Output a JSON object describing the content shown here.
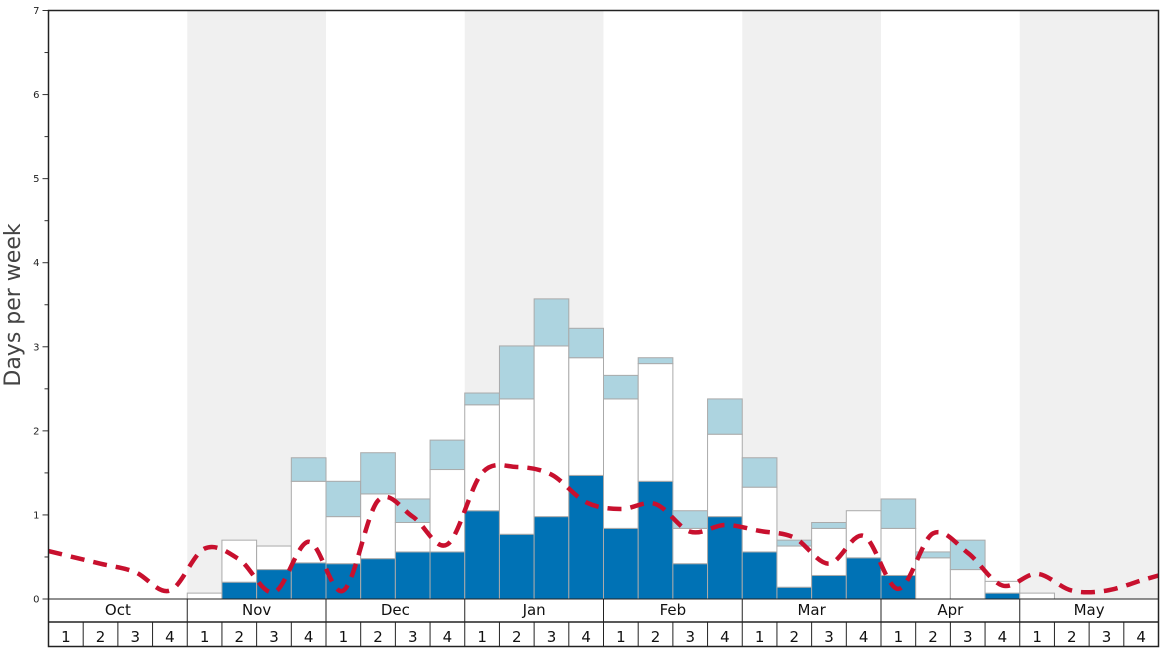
{
  "chart_data": {
    "type": "bar",
    "title": "",
    "xlabel": "",
    "ylabel": "Days per week",
    "ylim": [
      0,
      7
    ],
    "yticks": [
      0,
      1,
      2,
      3,
      4,
      5,
      6,
      7
    ],
    "months": [
      "Oct",
      "Nov",
      "Dec",
      "Jan",
      "Feb",
      "Mar",
      "Apr",
      "May"
    ],
    "weeks_per_month": [
      "1",
      "2",
      "3",
      "4"
    ],
    "colors": {
      "dark_segment": "#0072b5",
      "white_segment": "#ffffff",
      "light_segment": "#add4e0",
      "average_line": "#c8102e",
      "band_shade": "#f0f0f0",
      "bar_stroke": "#aaaaaa"
    },
    "series": [
      {
        "values": [
          0,
          0,
          0,
          0,
          0,
          0.2,
          0.35,
          0.43,
          0.42,
          0.48,
          0.56,
          0.56,
          1.05,
          0.77,
          0.98,
          1.47,
          0.84,
          1.4,
          0.42,
          0.98,
          0.56,
          0.14,
          0.28,
          0.49,
          0.28,
          0,
          0,
          0.07,
          0,
          0,
          0,
          0
        ]
      },
      {
        "values": [
          0,
          0,
          0,
          0,
          0.07,
          0.5,
          0.28,
          0.97,
          0.56,
          0.77,
          0.35,
          0.98,
          1.26,
          1.61,
          2.03,
          1.4,
          1.54,
          1.4,
          0.42,
          0.98,
          0.77,
          0.49,
          0.56,
          0.56,
          0.56,
          0.49,
          0.35,
          0.14,
          0.07,
          0,
          0,
          0
        ]
      },
      {
        "values": [
          0,
          0,
          0,
          0,
          0,
          0,
          0,
          0.28,
          0.42,
          0.49,
          0.28,
          0.35,
          0.14,
          0.63,
          0.56,
          0.35,
          0.28,
          0.07,
          0.21,
          0.42,
          0.35,
          0.07,
          0.07,
          0,
          0.35,
          0.07,
          0.35,
          0,
          0,
          0,
          0,
          0
        ]
      },
      {
        "line_style": "dashed",
        "values": [
          0.52,
          0.42,
          0.32,
          0.1,
          0.6,
          0.47,
          0.08,
          0.68,
          0.1,
          1.17,
          0.98,
          0.65,
          1.5,
          1.57,
          1.48,
          1.15,
          1.07,
          1.13,
          0.8,
          0.88,
          0.81,
          0.73,
          0.42,
          0.75,
          0.12,
          0.78,
          0.55,
          0.16,
          0.3,
          0.1,
          0.1,
          0.22
        ]
      }
    ]
  }
}
